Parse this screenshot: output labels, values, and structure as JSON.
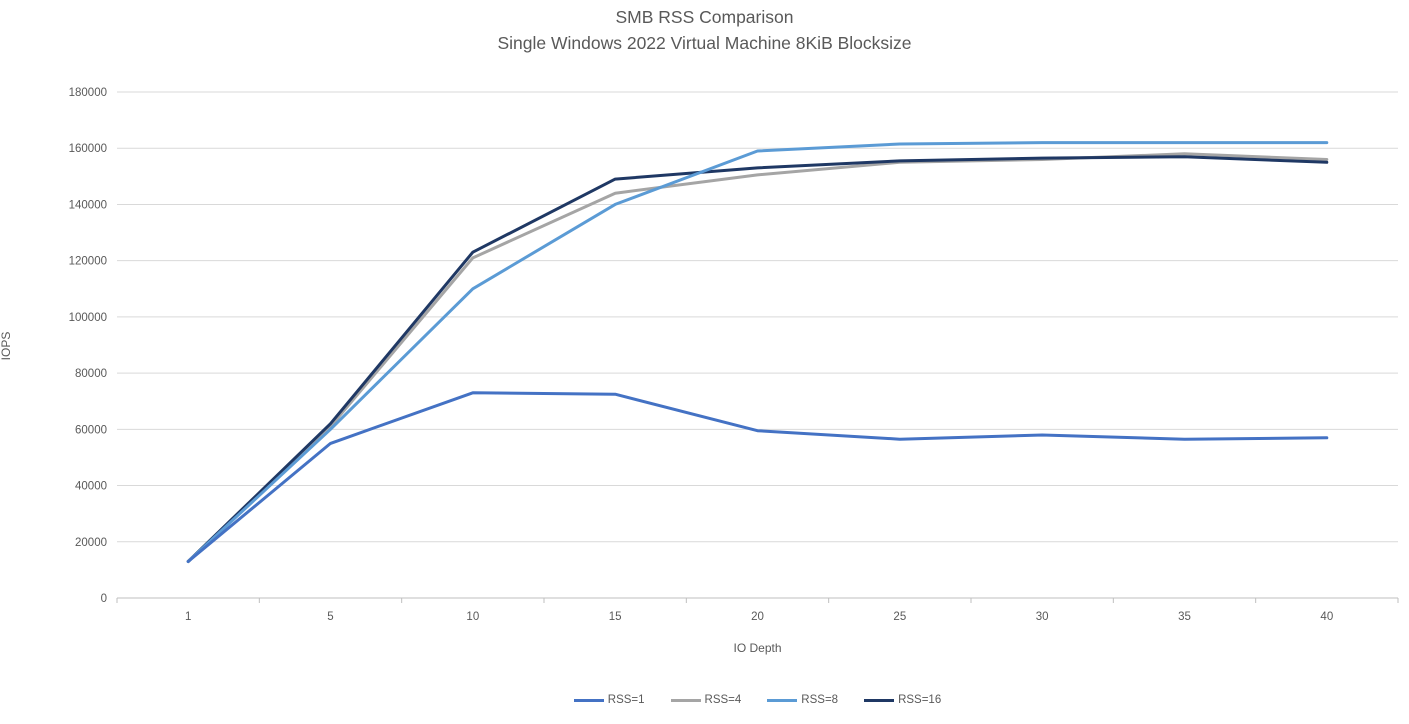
{
  "title": {
    "line1": "SMB RSS Comparison",
    "line2": "Single Windows 2022 Virtual Machine 8KiB Blocksize"
  },
  "chart_data": {
    "type": "line",
    "title": "SMB RSS Comparison",
    "subtitle": "Single Windows 2022 Virtual Machine 8KiB Blocksize",
    "xlabel": "IO Depth",
    "ylabel": "IOPS",
    "categories": [
      1,
      5,
      10,
      15,
      20,
      25,
      30,
      35,
      40
    ],
    "series": [
      {
        "name": "RSS=1",
        "color": "#4472C4",
        "values": [
          13000,
          55000,
          73000,
          72500,
          59500,
          56500,
          58000,
          56500,
          57000
        ]
      },
      {
        "name": "RSS=4",
        "color": "#A5A5A5",
        "values": [
          13000,
          61000,
          121000,
          144000,
          150500,
          155000,
          156000,
          158000,
          156000
        ]
      },
      {
        "name": "RSS=8",
        "color": "#5B9BD5",
        "values": [
          13000,
          60000,
          110000,
          140000,
          159000,
          161500,
          162000,
          162000,
          162000
        ]
      },
      {
        "name": "RSS=16",
        "color": "#1F3864",
        "values": [
          13000,
          62000,
          123000,
          149000,
          153000,
          155500,
          156500,
          157000,
          155000
        ]
      }
    ],
    "draw_order": [
      "RSS=4",
      "RSS=16",
      "RSS=8",
      "RSS=1"
    ],
    "ylim": [
      0,
      180000
    ],
    "ytick_step": 20000,
    "grid": "horizontal",
    "legend_position": "bottom"
  },
  "styles": {
    "text_color": "#595959",
    "gridline_color": "#D9D9D9",
    "axis_color": "#BFBFBF",
    "background": "#FFFFFF",
    "line_width": 3
  }
}
